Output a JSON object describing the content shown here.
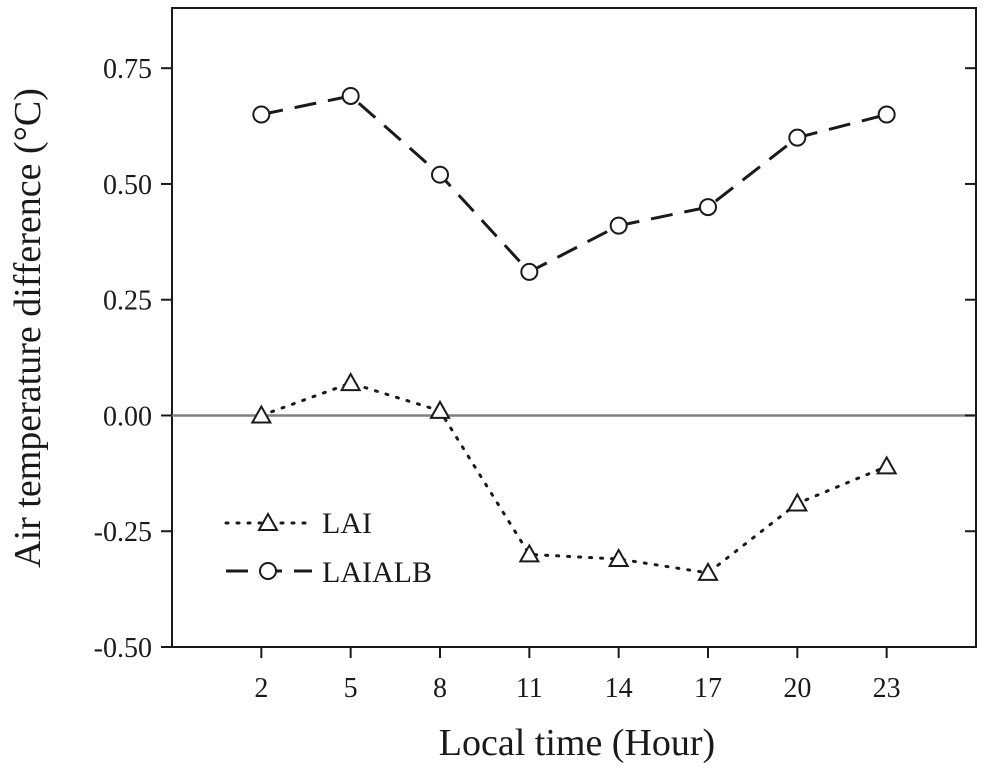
{
  "chart_data": {
    "type": "line",
    "x": [
      2,
      5,
      8,
      11,
      14,
      17,
      20,
      23
    ],
    "series": [
      {
        "name": "LAI",
        "marker": "triangle",
        "line_style": "dotted",
        "values": [
          0.0,
          0.07,
          0.01,
          -0.3,
          -0.31,
          -0.34,
          -0.19,
          -0.11
        ]
      },
      {
        "name": "LAIALB",
        "marker": "circle",
        "line_style": "dashed",
        "values": [
          0.65,
          0.69,
          0.52,
          0.31,
          0.41,
          0.45,
          0.6,
          0.65
        ]
      }
    ],
    "xlabel": "Local time (Hour)",
    "ylabel": "Air temperature difference (°C)",
    "xlim": [
      -1,
      26
    ],
    "ylim": [
      -0.5,
      0.88
    ],
    "x_ticks": [
      2,
      5,
      8,
      11,
      14,
      17,
      20,
      23
    ],
    "x_tick_labels": [
      "2",
      "5",
      "8",
      "11",
      "14",
      "17",
      "20",
      "23"
    ],
    "y_ticks": [
      -0.5,
      -0.25,
      0.0,
      0.25,
      0.5,
      0.75
    ],
    "y_tick_labels": [
      "-0.50",
      "-0.25",
      "0.00",
      "0.25",
      "0.50",
      "0.75"
    ],
    "zero_line": true,
    "zero_line_color": "#808080",
    "grid": false,
    "legend_position": "lower-left"
  }
}
